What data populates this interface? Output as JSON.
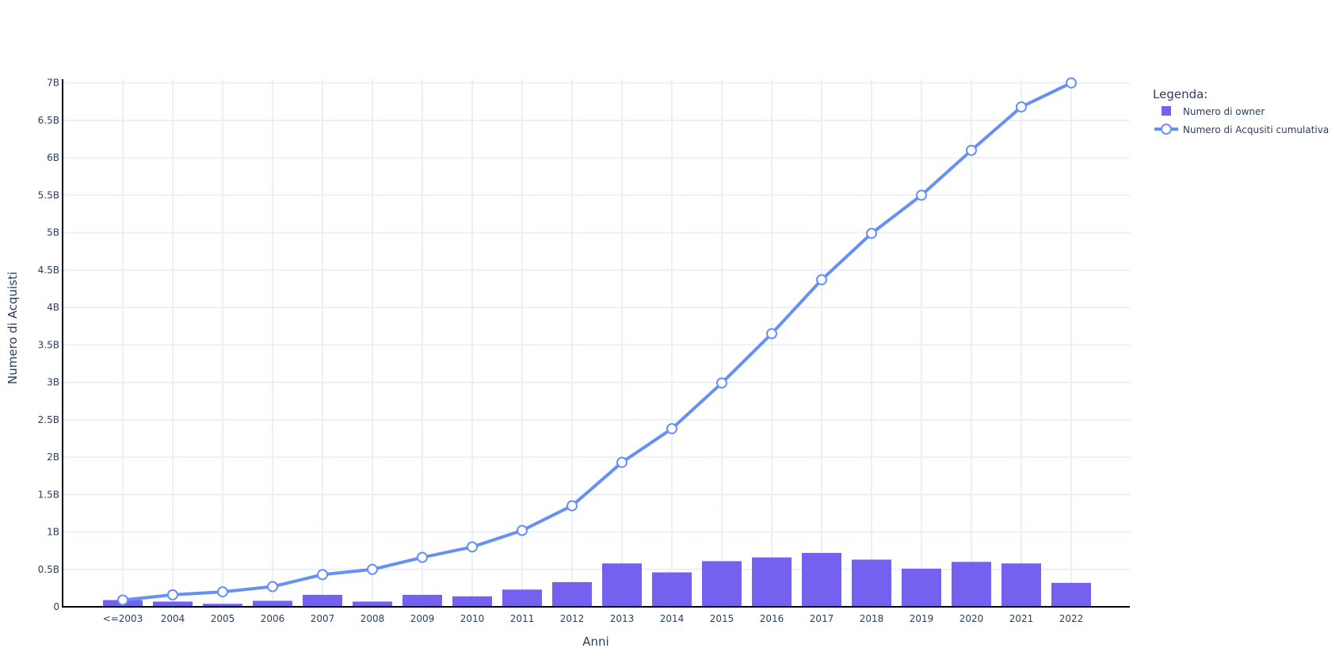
{
  "chart_data": {
    "type": "bar",
    "categories": [
      "<=2003",
      "2004",
      "2005",
      "2006",
      "2007",
      "2008",
      "2009",
      "2010",
      "2011",
      "2012",
      "2013",
      "2014",
      "2015",
      "2016",
      "2017",
      "2018",
      "2019",
      "2020",
      "2021",
      "2022"
    ],
    "series": [
      {
        "name": "Numero di owner",
        "type": "bar",
        "color": "#7561f0",
        "values": [
          0.09,
          0.07,
          0.04,
          0.08,
          0.16,
          0.07,
          0.16,
          0.14,
          0.23,
          0.33,
          0.58,
          0.46,
          0.61,
          0.66,
          0.72,
          0.63,
          0.51,
          0.6,
          0.58,
          0.32
        ]
      },
      {
        "name": "Numero di Acqusiti cumulativa",
        "type": "line",
        "color": "#6690f6",
        "values": [
          0.09,
          0.16,
          0.2,
          0.27,
          0.43,
          0.5,
          0.66,
          0.8,
          1.02,
          1.35,
          1.93,
          2.38,
          2.99,
          3.65,
          4.37,
          4.99,
          5.5,
          6.1,
          6.68,
          7.0
        ]
      }
    ],
    "xlabel": "Anni",
    "ylabel": "Numero di Acquisti",
    "ylim": [
      0,
      7.05
    ],
    "ytick_values": [
      0,
      0.5,
      1,
      1.5,
      2,
      2.5,
      3,
      3.5,
      4,
      4.5,
      5,
      5.5,
      6,
      6.5,
      7
    ],
    "ytick_labels": [
      "0",
      "0.5B",
      "1B",
      "1.5B",
      "2B",
      "2.5B",
      "3B",
      "3.5B",
      "4B",
      "4.5B",
      "5B",
      "5.5B",
      "6B",
      "6.5B",
      "7B"
    ],
    "grid": true,
    "legend_title": "Legenda:",
    "legend_position": "top-right",
    "colors": {
      "grid": "#ebf0f8",
      "axis": "#000000",
      "text": "#2a3f5f"
    }
  }
}
